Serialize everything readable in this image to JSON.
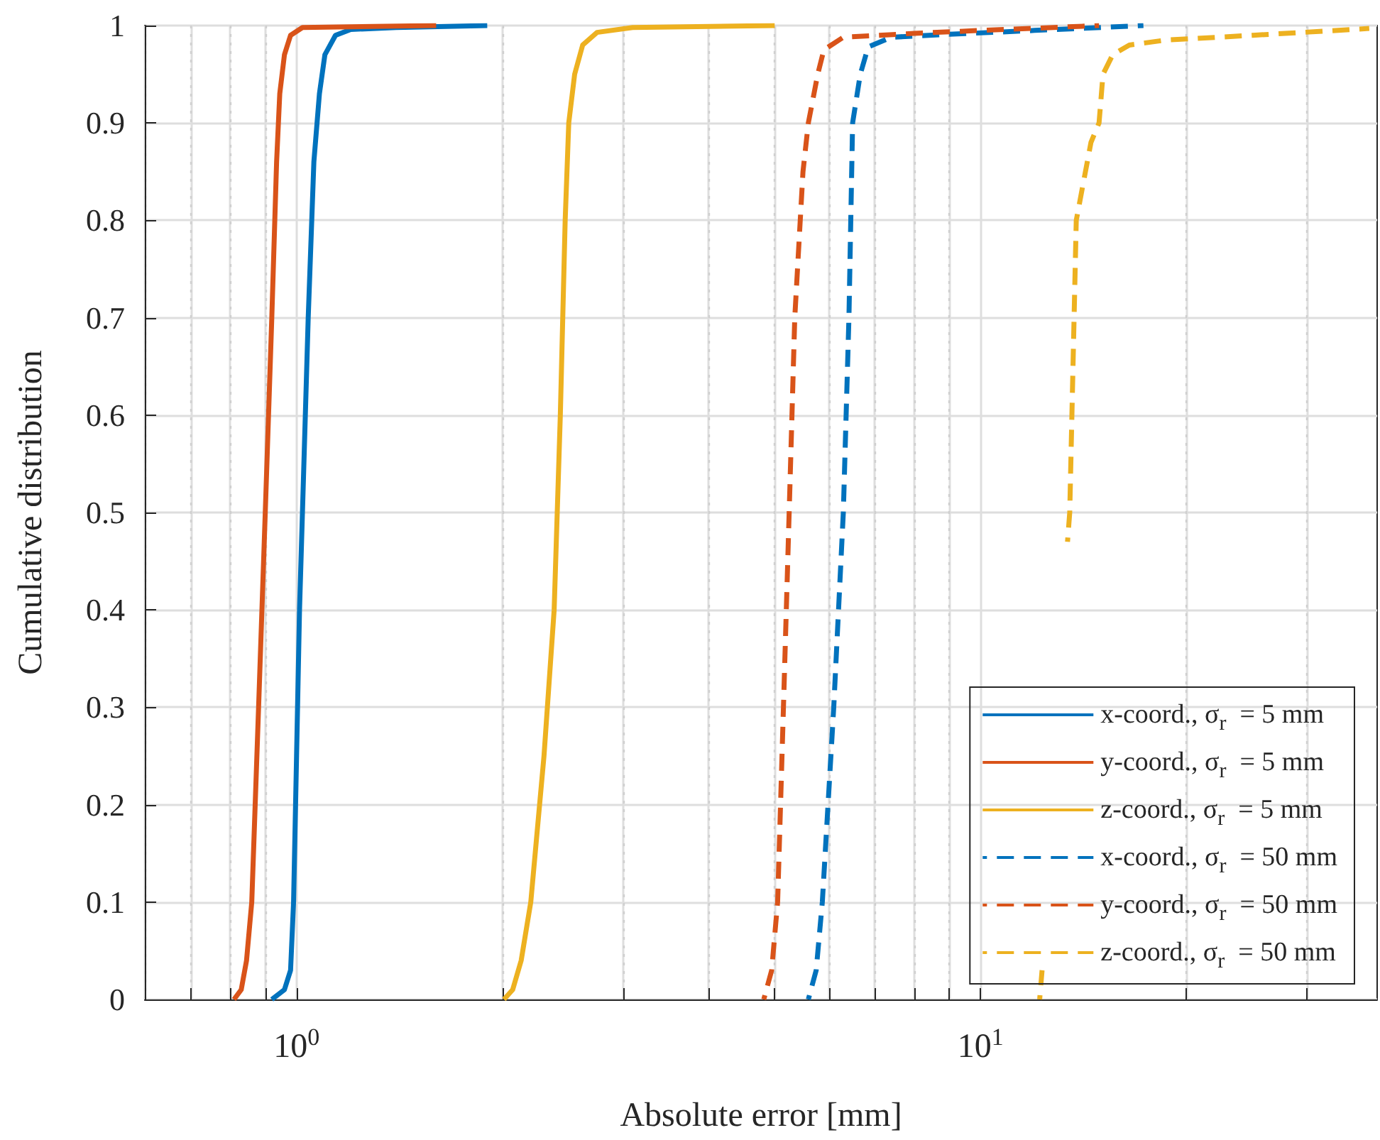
{
  "chart_data": {
    "type": "line",
    "xlabel": "Absolute error [mm]",
    "ylabel": "Cumulative distribution",
    "log": "x",
    "grid": true,
    "legend": "bottom right",
    "marker": "none",
    "xlim": [
      0.6,
      38
    ],
    "ylim": [
      0,
      1
    ],
    "xticks": [
      {
        "value": 0.6,
        "label": null
      },
      {
        "value": 0.7,
        "label": null
      },
      {
        "value": 0.8,
        "label": null
      },
      {
        "value": 0.9,
        "label": null
      },
      {
        "value": 1,
        "label": "10$^{0}$"
      },
      {
        "value": 2,
        "label": null
      },
      {
        "value": 3,
        "label": null
      },
      {
        "value": 4,
        "label": null
      },
      {
        "value": 5,
        "label": null
      },
      {
        "value": 6,
        "label": null
      },
      {
        "value": 7,
        "label": null
      },
      {
        "value": 8,
        "label": null
      },
      {
        "value": 9,
        "label": null
      },
      {
        "value": 10,
        "label": "10$^{1}$"
      },
      {
        "value": 20,
        "label": null
      },
      {
        "value": 30,
        "label": null
      }
    ],
    "yticks": [
      0,
      0.1,
      0.2,
      0.3,
      0.4,
      0.5,
      0.6,
      0.7,
      0.8,
      0.9,
      1
    ],
    "series": [
      {
        "name": "x-coord., σ$_{r}$  = 5 mm",
        "color": "#0072bd",
        "line_style": "solid",
        "x": [
          0.92,
          0.96,
          0.98,
          0.99,
          1.0,
          1.01,
          1.02,
          1.04,
          1.06,
          1.08,
          1.1,
          1.14,
          1.2,
          1.4,
          1.9
        ],
        "values": [
          0,
          0.01,
          0.03,
          0.1,
          0.25,
          0.4,
          0.5,
          0.7,
          0.86,
          0.93,
          0.97,
          0.99,
          0.996,
          0.998,
          1
        ]
      },
      {
        "name": "y-coord., σ$_{r}$  = 5 mm",
        "color": "#d95319",
        "line_style": "solid",
        "x": [
          0.81,
          0.83,
          0.845,
          0.86,
          0.88,
          0.9,
          0.92,
          0.935,
          0.945,
          0.96,
          0.98,
          1.02,
          1.6
        ],
        "values": [
          0,
          0.01,
          0.04,
          0.1,
          0.3,
          0.5,
          0.7,
          0.86,
          0.93,
          0.97,
          0.99,
          0.998,
          1
        ]
      },
      {
        "name": "z-coord., σ$_{r}$  = 5 mm",
        "color": "#edb120",
        "line_style": "solid",
        "x": [
          2.01,
          2.07,
          2.13,
          2.2,
          2.3,
          2.38,
          2.43,
          2.47,
          2.5,
          2.55,
          2.62,
          2.75,
          3.1,
          5.0
        ],
        "values": [
          0,
          0.01,
          0.04,
          0.1,
          0.25,
          0.4,
          0.6,
          0.8,
          0.9,
          0.95,
          0.98,
          0.993,
          0.998,
          1
        ]
      },
      {
        "name": "x-coord., σ$_{r}$  = 50 mm",
        "color": "#0072bd",
        "line_style": "dashed",
        "x": [
          5.6,
          5.75,
          5.87,
          6.1,
          6.3,
          6.42,
          6.5,
          6.67,
          6.85,
          7.4,
          9,
          12,
          17.3
        ],
        "values": [
          0,
          0.03,
          0.1,
          0.3,
          0.5,
          0.7,
          0.9,
          0.95,
          0.978,
          0.988,
          0.991,
          0.995,
          1
        ]
      },
      {
        "name": "y-coord., σ$_{r}$  = 50 mm",
        "color": "#d95319",
        "line_style": "dashed",
        "x": [
          4.82,
          4.95,
          5.05,
          5.15,
          5.25,
          5.35,
          5.5,
          5.6,
          5.78,
          5.9,
          6.3,
          8,
          10,
          14.9
        ],
        "values": [
          0,
          0.03,
          0.1,
          0.3,
          0.5,
          0.7,
          0.85,
          0.9,
          0.95,
          0.975,
          0.988,
          0.992,
          0.995,
          1
        ]
      },
      {
        "name": "z-coord., σ$_{r}$  = 50 mm",
        "color": "#edb120",
        "line_style": "dashed",
        "x": [
          12.2,
          12.3,
          12.8,
          13.2,
          13.4,
          13.5,
          13.8,
          14.5,
          14.9,
          15.1,
          15.6,
          16.5,
          18.6,
          25,
          37
        ],
        "values": [
          0,
          0.03,
          null,
          null,
          0.47,
          0.5,
          0.8,
          0.88,
          0.9,
          0.95,
          0.97,
          0.98,
          0.985,
          0.99,
          0.997
        ]
      }
    ]
  }
}
